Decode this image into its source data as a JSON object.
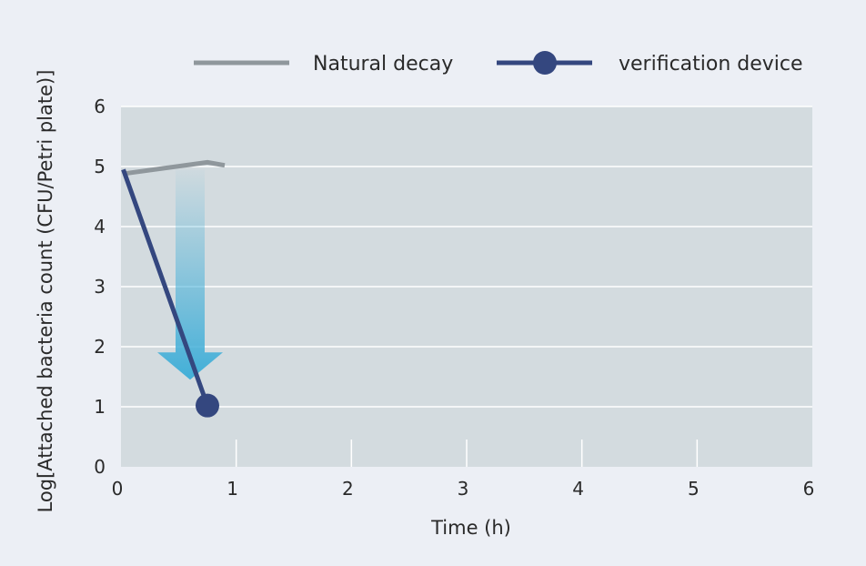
{
  "chart_data": {
    "type": "line",
    "title": "",
    "xlabel": "Time (h)",
    "ylabel": "Log[Attached bacteria count (CFU/Petri plate)]",
    "xlim": [
      0,
      6
    ],
    "ylim": [
      0,
      6
    ],
    "xticks": [
      0,
      1,
      2,
      3,
      4,
      5,
      6
    ],
    "yticks": [
      0,
      1,
      2,
      3,
      4,
      5,
      6
    ],
    "x_tick_labels": [
      "0",
      "1",
      "2",
      "3",
      "4",
      "5",
      "6"
    ],
    "y_tick_labels": [
      "0",
      "1",
      "2",
      "3",
      "4",
      "5",
      "6"
    ],
    "grid": "horizontal",
    "legend_position": "top-right",
    "series": [
      {
        "name": "Natural decay",
        "color": "#8f979c",
        "marker": "none",
        "points": [
          [
            0.02,
            4.88
          ],
          [
            0.75,
            5.07
          ],
          [
            0.9,
            5.02
          ]
        ]
      },
      {
        "name": "verification device",
        "color": "#34477f",
        "marker": "circle",
        "points": [
          [
            0.02,
            4.95
          ],
          [
            0.75,
            1.02
          ]
        ],
        "marker_points": [
          [
            0.75,
            1.02
          ]
        ]
      }
    ],
    "annotations": [
      {
        "type": "arrow-down",
        "from": [
          0.6,
          4.95
        ],
        "to": [
          0.6,
          1.45
        ],
        "color": "#42afd8"
      }
    ],
    "colors": {
      "background": "#eceff5",
      "plot_background": "#d3dbdf",
      "gridline": "#ffffff"
    }
  }
}
